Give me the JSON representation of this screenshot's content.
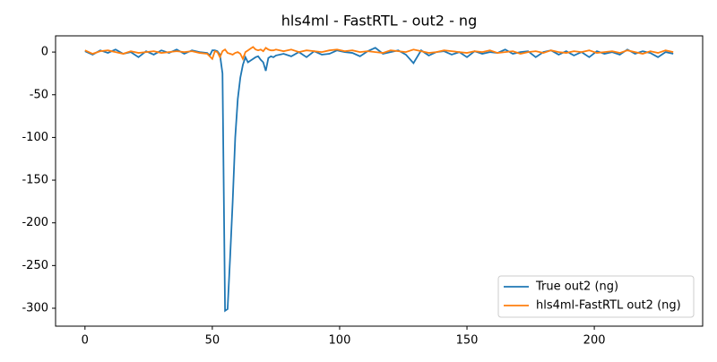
{
  "chart_data": {
    "type": "line",
    "title": "hls4ml - FastRTL - out2 - ng",
    "x": [
      0,
      3,
      6,
      9,
      12,
      15,
      18,
      21,
      24,
      27,
      30,
      33,
      36,
      39,
      42,
      45,
      48,
      49,
      50,
      51,
      52,
      53,
      54,
      55,
      56,
      57,
      58,
      59,
      60,
      61,
      62,
      63,
      64,
      65,
      66,
      67,
      68,
      69,
      70,
      71,
      72,
      73,
      74,
      75,
      78,
      81,
      84,
      87,
      90,
      93,
      96,
      99,
      102,
      105,
      108,
      111,
      114,
      117,
      120,
      123,
      126,
      129,
      132,
      135,
      138,
      141,
      144,
      147,
      150,
      153,
      156,
      159,
      162,
      165,
      168,
      171,
      174,
      177,
      180,
      183,
      186,
      189,
      192,
      195,
      198,
      201,
      204,
      207,
      210,
      213,
      216,
      219,
      222,
      225,
      228,
      231
    ],
    "series": [
      {
        "name": "True out2 (ng)",
        "color": "#1f77b4",
        "values": [
          1,
          -3,
          2,
          -1,
          3,
          -2,
          0,
          -6,
          1,
          -3,
          2,
          -1,
          3,
          -2,
          2,
          0,
          -1,
          -4,
          2,
          2,
          1,
          -3,
          -25,
          -303,
          -301,
          -240,
          -175,
          -100,
          -55,
          -30,
          -15,
          -6,
          -12,
          -10,
          -8,
          -6,
          -5,
          -9,
          -12,
          -22,
          -7,
          -5,
          -6,
          -4,
          -2,
          -5,
          0,
          -6,
          1,
          -3,
          -2,
          2,
          0,
          -1,
          -5,
          1,
          5,
          -2,
          0,
          2,
          -3,
          -13,
          2,
          -4,
          0,
          1,
          -3,
          0,
          -6,
          1,
          -2,
          0,
          -1,
          3,
          -2,
          0,
          1,
          -6,
          0,
          2,
          -3,
          1,
          -4,
          0,
          -6,
          1,
          -2,
          0,
          -3,
          3,
          -2,
          1,
          -1,
          -6,
          0,
          -2
        ]
      },
      {
        "name": "hls4ml-FastRTL out2 (ng)",
        "color": "#ff7f0e",
        "values": [
          2,
          -2,
          1,
          2,
          0,
          -2,
          1,
          -1,
          0,
          1,
          -1,
          0,
          1,
          0,
          1,
          -1,
          -2,
          -5,
          -8,
          1,
          0,
          -6,
          1,
          3,
          -1,
          -2,
          -3,
          -1,
          0,
          -2,
          -8,
          0,
          2,
          4,
          6,
          3,
          2,
          3,
          1,
          5,
          3,
          2,
          2,
          3,
          1,
          3,
          0,
          2,
          1,
          0,
          2,
          3,
          1,
          2,
          0,
          1,
          0,
          -1,
          2,
          1,
          0,
          3,
          1,
          -1,
          0,
          2,
          1,
          0,
          -1,
          1,
          0,
          2,
          -1,
          0,
          1,
          -2,
          0,
          1,
          -1,
          2,
          0,
          -1,
          1,
          0,
          2,
          -1,
          0,
          1,
          -1,
          2,
          0,
          -2,
          1,
          -1,
          2,
          0
        ]
      }
    ],
    "xlim": [
      -11.55,
      242.55
    ],
    "ylim": [
      -321,
      19
    ],
    "xticks": [
      0,
      50,
      100,
      150,
      200
    ],
    "yticks": [
      0,
      -50,
      -100,
      -150,
      -200,
      -250,
      -300
    ],
    "legend": "lower right"
  }
}
